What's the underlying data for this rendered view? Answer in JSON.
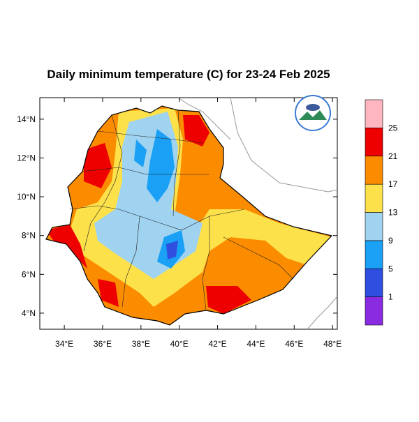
{
  "map": {
    "title": "Daily minimum temperature (C) for 23-24 Feb 2025",
    "xlim": [
      32.72,
      48.25
    ],
    "ylim": [
      3.17,
      15.11
    ],
    "xticks": [
      {
        "value": 34,
        "label": "34°E"
      },
      {
        "value": 36,
        "label": "36°E"
      },
      {
        "value": 38,
        "label": "38°E"
      },
      {
        "value": 40,
        "label": "40°E"
      },
      {
        "value": 42,
        "label": "42°E"
      },
      {
        "value": 44,
        "label": "44°E"
      },
      {
        "value": 46,
        "label": "46°E"
      },
      {
        "value": 48,
        "label": "48°E"
      }
    ],
    "yticks": [
      {
        "value": 4,
        "label": "4°N"
      },
      {
        "value": 6,
        "label": "6°N"
      },
      {
        "value": 8,
        "label": "8°N"
      },
      {
        "value": 10,
        "label": "10°N"
      },
      {
        "value": 12,
        "label": "12°N"
      },
      {
        "value": 14,
        "label": "14°N"
      }
    ]
  },
  "colorbar": {
    "levels": [
      1,
      5,
      9,
      13,
      17,
      21,
      25
    ],
    "colors": [
      "#8a2be2",
      "#2f4fe0",
      "#1aa0f5",
      "#9fd3f0",
      "#fde14a",
      "#fb8c00",
      "#ee0000",
      "#ffb6c1"
    ]
  }
}
